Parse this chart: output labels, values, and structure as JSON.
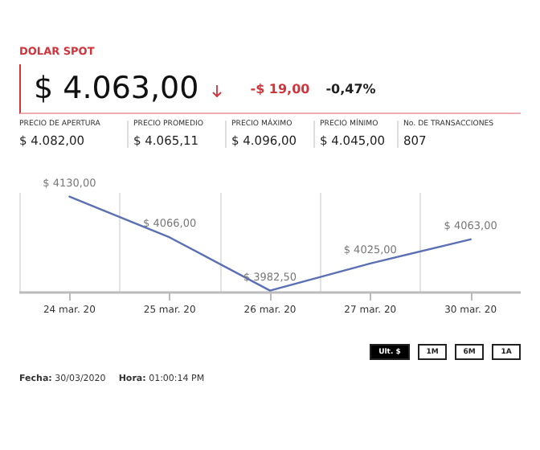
{
  "chart_data": [
    {
      "type": "other",
      "title": "DOLAR SPOT",
      "color": "#d0343c",
      "annotations": [
        "$ 4.063,00",
        "-$ 19,00",
        "-0,47%",
        "PRECIO DE APERTURA",
        "$ 4.082,00",
        "PRECIO PROMEDIO",
        "$ 4.065,11",
        "PRECIO MÁXIMO",
        "$ 4.096,00",
        "PRECIO MÍNIMO",
        "$ 4.045,00",
        "No. DE TRANSACCIONES",
        "807"
      ]
    },
    {
      "type": "line",
      "categories": [
        "24 mar. 20",
        "25 mar. 20",
        "26 mar. 20",
        "27 mar. 20",
        "30 mar. 20"
      ],
      "series": [
        {
          "color": "#5a6fb4",
          "values": [
            4130,
            4066,
            3982.5,
            4025,
            4063
          ],
          "value_labels": [
            "$ 4130,00",
            "$ 4066,00",
            "$ 3982,50",
            "$ 4025,00",
            "$ 4063,00"
          ]
        }
      ],
      "grid": "x",
      "marker": "none",
      "line_style": "solid",
      "tick_labels": "x"
    },
    {
      "type": "other",
      "annotations": [
        "Ult. $",
        "1M",
        "6M",
        "1A",
        "Fecha: 30/03/2020",
        "Hora: 01:00:14 PM"
      ]
    }
  ]
}
